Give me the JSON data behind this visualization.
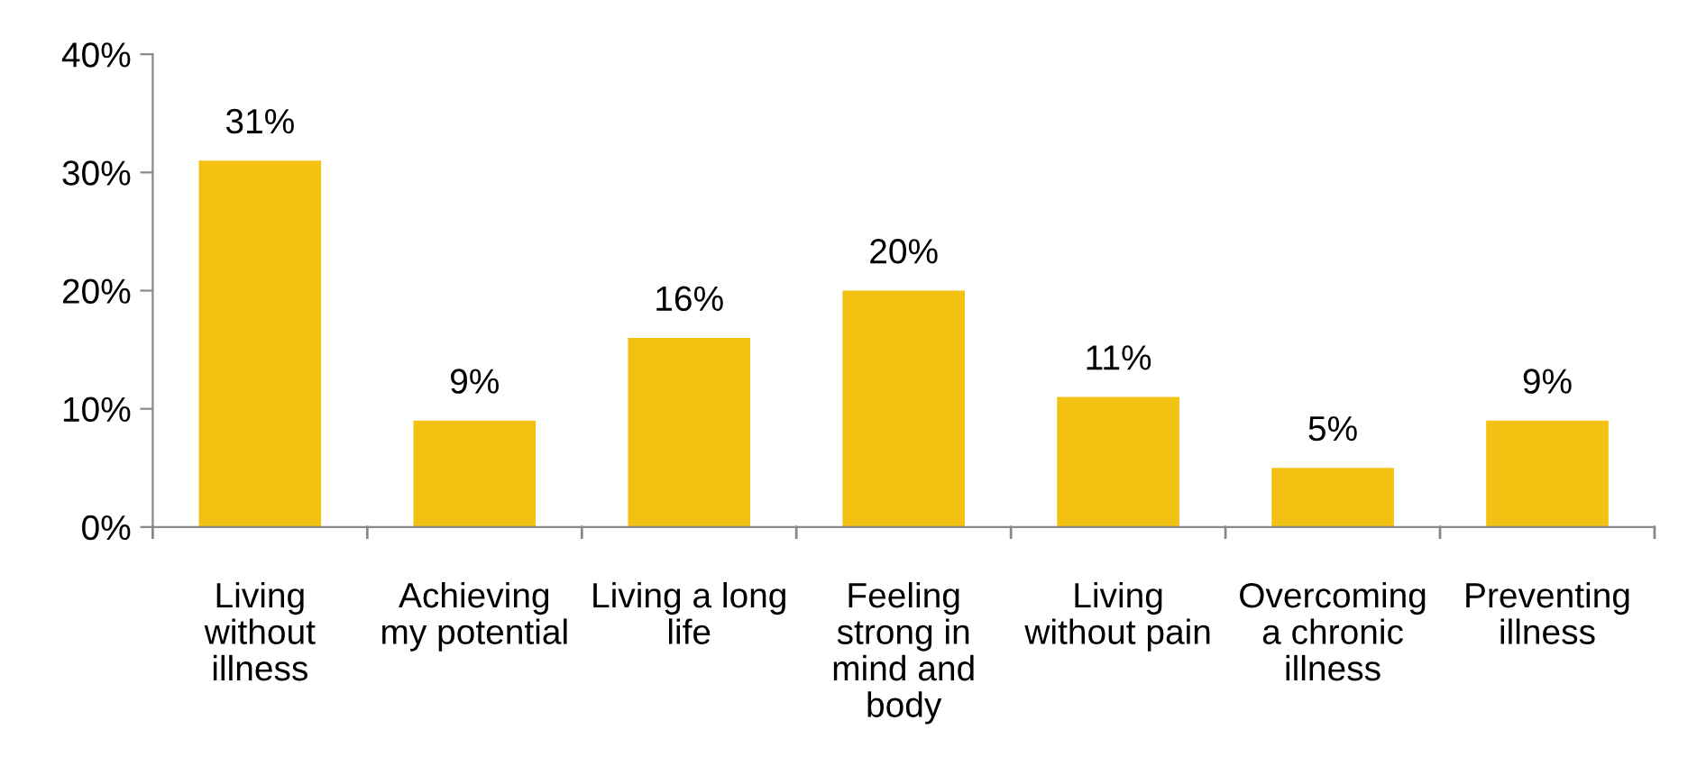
{
  "chart_data": {
    "type": "bar",
    "categories": [
      "Living\nwithout\nillness",
      "Achieving\nmy potential",
      "Living a long\nlife",
      "Feeling\nstrong in\nmind and\nbody",
      "Living\nwithout pain",
      "Overcoming\na chronic\nillness",
      "Preventing\nillness"
    ],
    "values": [
      31,
      9,
      16,
      20,
      11,
      5,
      9
    ],
    "value_labels": [
      "31%",
      "9%",
      "16%",
      "20%",
      "11%",
      "5%",
      "9%"
    ],
    "color": "#f2c111",
    "ylim": [
      0,
      40
    ],
    "yticks": [
      {
        "value": 0,
        "label": "0%"
      },
      {
        "value": 10,
        "label": "10%"
      },
      {
        "value": 20,
        "label": "20%"
      },
      {
        "value": 30,
        "label": "30%"
      },
      {
        "value": 40,
        "label": "40%"
      }
    ],
    "grid": false,
    "legend": false
  }
}
